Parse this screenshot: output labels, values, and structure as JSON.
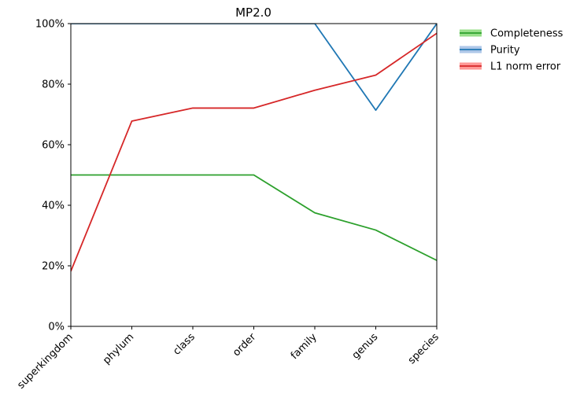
{
  "chart_data": {
    "type": "line",
    "title": "MP2.0",
    "categories": [
      "superkingdom",
      "phylum",
      "class",
      "order",
      "family",
      "genus",
      "species"
    ],
    "ylim": [
      0,
      100
    ],
    "y_ticks": [
      "0%",
      "20%",
      "40%",
      "60%",
      "80%",
      "100%"
    ],
    "y_tick_values": [
      0,
      20,
      40,
      60,
      80,
      100
    ],
    "grid": false,
    "legend_position": "outside-top-right",
    "series": [
      {
        "name": "Completeness",
        "color": "#2ca02c",
        "band_color": "#98df8a",
        "values": [
          50,
          50,
          50,
          50,
          37.5,
          31.8,
          21.8
        ]
      },
      {
        "name": "Purity",
        "color": "#1f77b4",
        "band_color": "#aec7e8",
        "values": [
          100,
          100,
          100,
          100,
          100,
          71.4,
          100
        ]
      },
      {
        "name": "L1 norm error",
        "color": "#d62728",
        "band_color": "#ff9896",
        "values": [
          18.2,
          67.8,
          72.1,
          72.1,
          78,
          83,
          96.8
        ]
      }
    ]
  }
}
